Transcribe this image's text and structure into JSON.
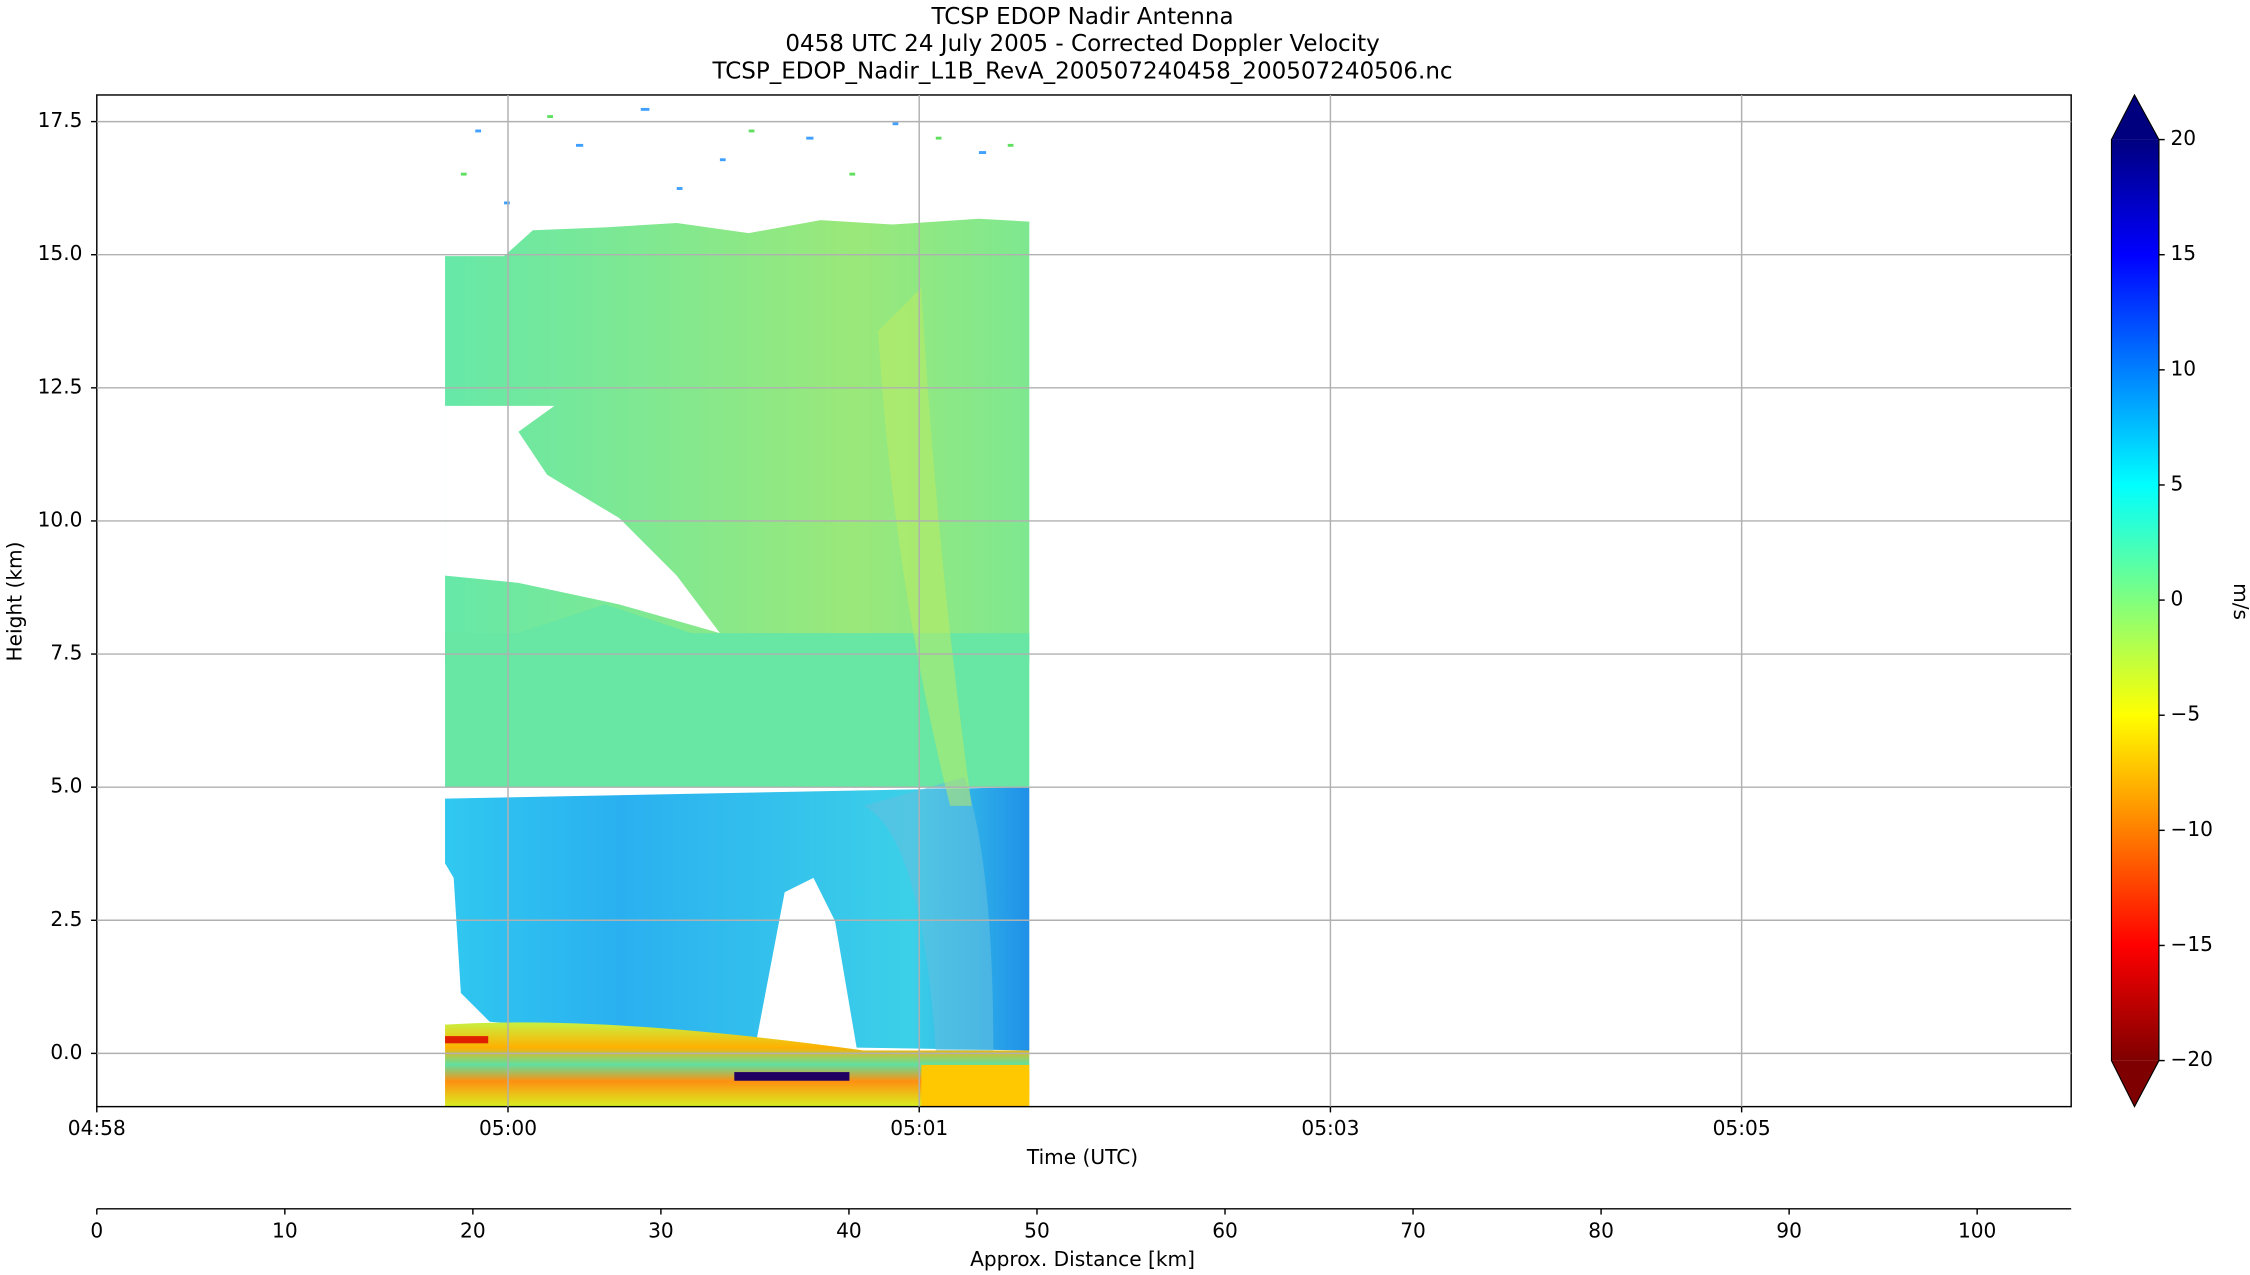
{
  "chart_data": {
    "type": "radar-curtain",
    "title": "TCSP EDOP Nadir Antenna",
    "subtitle": "0458 UTC 24 July 2005 - Corrected Doppler Velocity",
    "filename": "TCSP_EDOP_Nadir_L1B_RevA_200507240458_200507240506.nc",
    "xlabel": "Time (UTC)",
    "ylabel": "Height (km)",
    "time_ticks": [
      "04:58",
      "05:00",
      "05:01",
      "05:03",
      "05:05"
    ],
    "ylim": [
      -1,
      18
    ],
    "yticks": [
      {
        "value": 0,
        "label": "0.0"
      },
      {
        "value": 2.5,
        "label": "2.5"
      },
      {
        "value": 5,
        "label": "5.0"
      },
      {
        "value": 7.5,
        "label": "7.5"
      },
      {
        "value": 10,
        "label": "10.0"
      },
      {
        "value": 12.5,
        "label": "12.5"
      },
      {
        "value": 15,
        "label": "15.0"
      },
      {
        "value": 17.5,
        "label": "17.5"
      }
    ],
    "grid": true,
    "distance_axis": {
      "label": "Approx. Distance [km]",
      "xlim": [
        0,
        105
      ],
      "xticks": [
        0,
        10,
        20,
        30,
        40,
        50,
        60,
        70,
        80,
        90,
        100
      ]
    },
    "colorbar": {
      "label": "m/s",
      "colormap": "jet_r",
      "lim": [
        -20,
        20
      ],
      "ticks": [
        {
          "value": -20,
          "label": "−20"
        },
        {
          "value": -15,
          "label": "−15"
        },
        {
          "value": -10,
          "label": "−10"
        },
        {
          "value": -5,
          "label": "−5"
        },
        0,
        5,
        10,
        15,
        20
      ]
    }
  }
}
